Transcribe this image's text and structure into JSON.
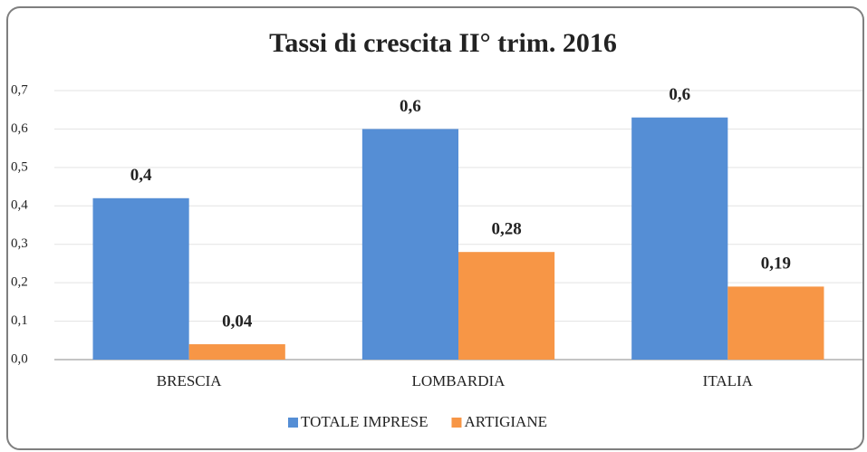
{
  "chart_data": {
    "type": "bar",
    "title": "Tassi di crescita II° trim. 2016",
    "categories": [
      "BRESCIA",
      "LOMBARDIA",
      "ITALIA"
    ],
    "series": [
      {
        "name": "TOTALE IMPRESE",
        "color": "#558ed5",
        "values": [
          0.42,
          0.6,
          0.63
        ],
        "value_labels": [
          "0,4",
          "0,6",
          "0,6"
        ]
      },
      {
        "name": "ARTIGIANE",
        "color": "#f79646",
        "values": [
          0.04,
          0.28,
          0.19
        ],
        "value_labels": [
          "0,04",
          "0,28",
          "0,19"
        ]
      }
    ],
    "ylim": [
      0,
      0.7
    ],
    "yticks": [
      {
        "value": 0,
        "label": "0,0"
      },
      {
        "value": 0.1,
        "label": "0,1"
      },
      {
        "value": 0.2,
        "label": "0,2"
      },
      {
        "value": 0.3,
        "label": "0,3"
      },
      {
        "value": 0.4,
        "label": "0,4"
      },
      {
        "value": 0.5,
        "label": "0,5"
      },
      {
        "value": 0.6,
        "label": "0,6"
      },
      {
        "value": 0.7,
        "label": "0,7"
      }
    ],
    "grid": true,
    "legend": "bottom"
  }
}
